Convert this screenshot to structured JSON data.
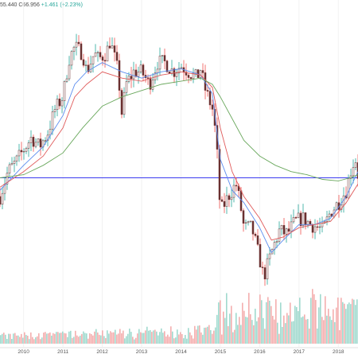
{
  "header": {
    "ohlc_tail": "55.440",
    "close_label": "C66.956",
    "change": "+1.461 (+2.23%)"
  },
  "colors": {
    "background": "#ffffff",
    "candle_up": "#26a69a",
    "candle_down": "#ef5350",
    "candle_body": "#6b3030",
    "ma_fast": "#5b8def",
    "ma_mid": "#e05b5b",
    "ma_slow": "#6aa85d",
    "horizontal_line": "#3b3bf0",
    "volume_up": "#8fd3c6",
    "volume_down": "#f2a1a1",
    "grid": "#f2f2f2"
  },
  "chart_data": {
    "type": "line",
    "title": "",
    "xlabel": "",
    "ylabel": "",
    "grid": true,
    "x_ticks": [
      "2010",
      "2011",
      "2012",
      "2013",
      "2014",
      "2015",
      "2016",
      "2017",
      "2018"
    ],
    "x_range": [
      2009.4,
      2018.5
    ],
    "y_range": [
      24,
      120
    ],
    "horizontal_level": 66,
    "series": [
      {
        "kind": "price",
        "x": [
          2009.4,
          2009.6,
          2009.8,
          2010.0,
          2010.2,
          2010.4,
          2010.6,
          2010.8,
          2011.0,
          2011.15,
          2011.3,
          2011.5,
          2011.6,
          2011.8,
          2011.9,
          2012.1,
          2012.2,
          2012.4,
          2012.5,
          2012.6,
          2012.8,
          2013.0,
          2013.2,
          2013.4,
          2013.6,
          2013.8,
          2014.0,
          2014.2,
          2014.4,
          2014.5,
          2014.6,
          2014.8,
          2014.9,
          2015.0,
          2015.2,
          2015.4,
          2015.5,
          2015.6,
          2015.8,
          2016.0,
          2016.1,
          2016.3,
          2016.5,
          2016.7,
          2016.9,
          2017.1,
          2017.3,
          2017.5,
          2017.6,
          2017.8,
          2018.0,
          2018.2,
          2018.35,
          2018.45,
          2018.5
        ],
        "y": [
          60,
          68,
          71,
          75,
          79,
          76,
          80,
          88,
          92,
          104,
          108,
          106,
          100,
          106,
          104,
          106,
          110,
          100,
          86,
          96,
          100,
          100,
          96,
          103,
          103,
          100,
          102,
          100,
          98,
          101,
          95,
          88,
          78,
          55,
          60,
          64,
          58,
          50,
          50,
          40,
          34,
          42,
          49,
          48,
          52,
          53,
          51,
          50,
          49,
          55,
          58,
          62,
          70,
          72,
          67
        ]
      },
      {
        "kind": "ma_fast",
        "x": [
          2009.4,
          2010.0,
          2010.5,
          2011.0,
          2011.3,
          2011.6,
          2012.0,
          2012.5,
          2013.0,
          2013.5,
          2014.0,
          2014.5,
          2014.8,
          2015.0,
          2015.3,
          2015.6,
          2016.0,
          2016.3,
          2016.6,
          2017.0,
          2017.4,
          2017.8,
          2018.2,
          2018.5
        ],
        "y": [
          62,
          70,
          76,
          86,
          96,
          100,
          103,
          100,
          98,
          100,
          101,
          99,
          93,
          72,
          62,
          58,
          50,
          42,
          46,
          51,
          51,
          53,
          60,
          68
        ]
      },
      {
        "kind": "ma_mid",
        "x": [
          2009.4,
          2010.0,
          2010.5,
          2011.0,
          2011.3,
          2011.6,
          2012.0,
          2012.5,
          2013.0,
          2013.5,
          2014.0,
          2014.5,
          2014.8,
          2015.0,
          2015.3,
          2015.6,
          2016.0,
          2016.3,
          2016.6,
          2017.0,
          2017.4,
          2017.8,
          2018.2,
          2018.5
        ],
        "y": [
          63,
          68,
          73,
          82,
          92,
          96,
          100,
          98,
          97,
          99,
          100,
          99,
          95,
          82,
          68,
          60,
          53,
          46,
          47,
          50,
          51,
          52,
          58,
          64
        ]
      },
      {
        "kind": "ma_slow",
        "x": [
          2009.4,
          2010.0,
          2010.5,
          2011.0,
          2011.5,
          2012.0,
          2012.5,
          2013.0,
          2013.5,
          2014.0,
          2014.5,
          2014.8,
          2015.0,
          2015.3,
          2015.6,
          2016.0,
          2016.4,
          2016.8,
          2017.2,
          2017.6,
          2018.0,
          2018.3,
          2018.5
        ],
        "y": [
          66,
          67,
          70,
          74,
          82,
          89,
          92,
          94,
          96,
          97,
          98,
          96,
          92,
          85,
          78,
          73,
          70,
          68,
          67,
          65.5,
          65,
          66,
          67
        ]
      }
    ]
  }
}
